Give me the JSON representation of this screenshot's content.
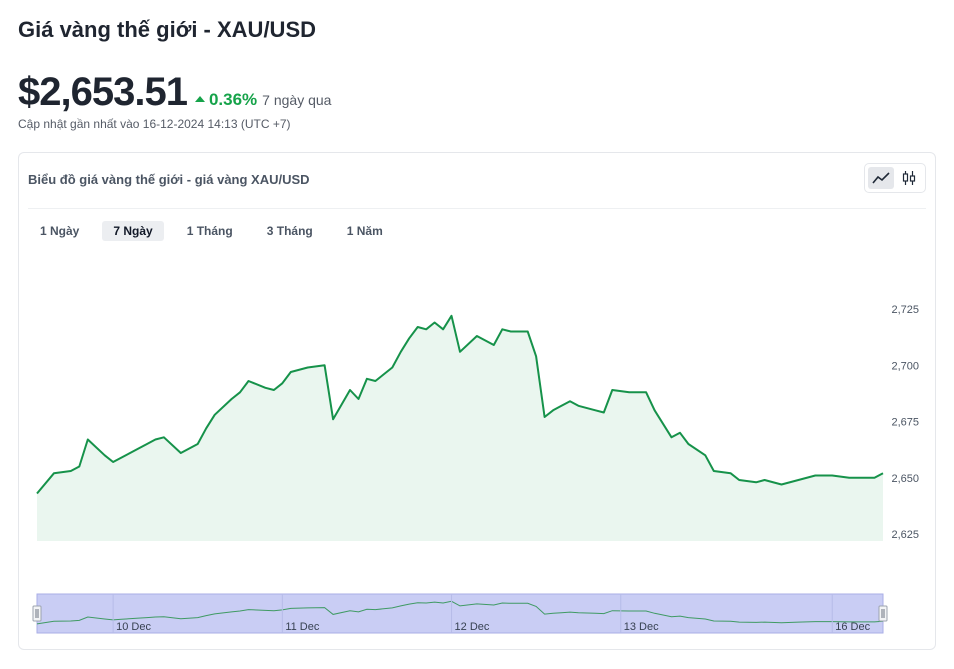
{
  "header": {
    "title": "Giá vàng thế giới - XAU/USD",
    "price": "$2,653.51",
    "change_pct": "0.36%",
    "change_period": "7 ngày qua",
    "updated": "Cập nhật gần nhất vào 16-12-2024 14:13 (UTC +7)"
  },
  "card": {
    "title": "Biểu đồ giá vàng thế giới - giá vàng XAU/USD",
    "chart_types": [
      {
        "name": "line-chart-icon",
        "active": true
      },
      {
        "name": "candlestick-icon",
        "active": false
      }
    ],
    "tabs": [
      {
        "label": "1 Ngày",
        "active": false
      },
      {
        "label": "7 Ngày",
        "active": true
      },
      {
        "label": "1 Tháng",
        "active": false
      },
      {
        "label": "3 Tháng",
        "active": false
      },
      {
        "label": "1 Năm",
        "active": false
      }
    ]
  },
  "colors": {
    "line": "#16924a",
    "area": "#eaf6ef",
    "navigator_band": "#c9cdf4",
    "up": "#16a34a"
  },
  "chart_data": {
    "type": "area",
    "title": "",
    "xlabel": "",
    "ylabel": "",
    "ylim": [
      2625,
      2737
    ],
    "y_ticks": [
      2625,
      2650,
      2675,
      2700,
      2725
    ],
    "y_tick_labels": [
      "2,625",
      "2,650",
      "2,675",
      "2,700",
      "2,725"
    ],
    "grid": false,
    "legend": "none",
    "x": [
      0,
      0.02,
      0.04,
      0.05,
      0.06,
      0.08,
      0.09,
      0.1,
      0.12,
      0.13,
      0.14,
      0.15,
      0.17,
      0.19,
      0.2,
      0.21,
      0.23,
      0.24,
      0.25,
      0.27,
      0.28,
      0.29,
      0.3,
      0.32,
      0.34,
      0.35,
      0.37,
      0.38,
      0.39,
      0.4,
      0.42,
      0.43,
      0.44,
      0.45,
      0.46,
      0.47,
      0.48,
      0.49,
      0.5,
      0.52,
      0.54,
      0.55,
      0.56,
      0.58,
      0.59,
      0.6,
      0.61,
      0.62,
      0.63,
      0.64,
      0.66,
      0.67,
      0.68,
      0.7,
      0.72,
      0.73,
      0.75,
      0.76,
      0.77,
      0.79,
      0.8,
      0.82,
      0.83,
      0.85,
      0.86,
      0.88,
      0.9,
      0.92,
      0.94,
      0.96,
      0.98,
      0.99,
      1.0
    ],
    "values": [
      2643,
      2652,
      2653,
      2655,
      2667,
      2660,
      2657,
      2659,
      2663,
      2665,
      2667,
      2668,
      2661,
      2665,
      2672,
      2678,
      2685,
      2688,
      2693,
      2690,
      2689,
      2692,
      2697,
      2699,
      2700,
      2676,
      2689,
      2685,
      2694,
      2693,
      2699,
      2706,
      2712,
      2717,
      2716,
      2719,
      2716,
      2722,
      2706,
      2713,
      2709,
      2716,
      2715,
      2715,
      2704,
      2677,
      2680,
      2682,
      2684,
      2682,
      2680,
      2679,
      2689,
      2688,
      2688,
      2680,
      2668,
      2670,
      2665,
      2660,
      2653,
      2652,
      2649,
      2648,
      2649,
      2647,
      2649,
      2651,
      2651,
      2650,
      2650,
      2650,
      2652
    ],
    "navigator": {
      "x_tick_labels": [
        {
          "label": "10 Dec",
          "x": 0.09
        },
        {
          "label": "11 Dec",
          "x": 0.29
        },
        {
          "label": "12 Dec",
          "x": 0.49
        },
        {
          "label": "13 Dec",
          "x": 0.69
        },
        {
          "label": "16 Dec",
          "x": 0.94
        }
      ]
    }
  }
}
